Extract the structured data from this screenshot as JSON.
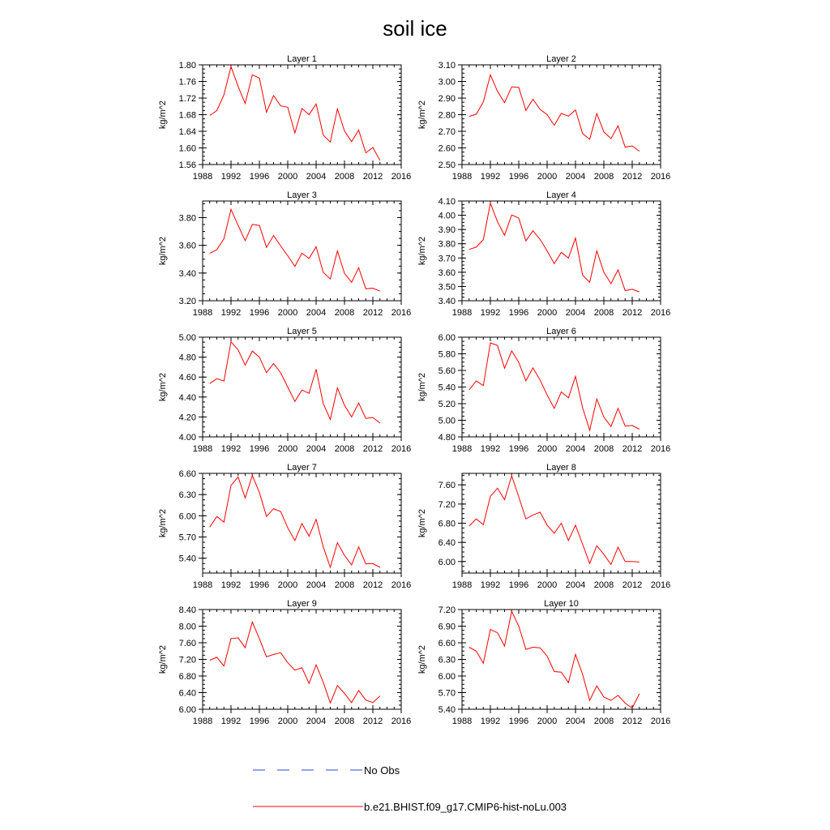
{
  "figure": {
    "title": "soil ice",
    "legend": [
      {
        "label": "No Obs",
        "color": "#3344cc",
        "style": "dashed"
      },
      {
        "label": "b.e21.BHIST.f09_g17.CMIP6-hist-noLu.003",
        "color": "#ff0000",
        "style": "solid"
      }
    ]
  },
  "chart_data": [
    {
      "type": "line",
      "title": "Layer 1",
      "ylabel": "kg/m^2",
      "xlim": [
        1988,
        2016
      ],
      "xticks": [
        1988,
        1992,
        1996,
        2000,
        2004,
        2008,
        2012,
        2016
      ],
      "ylim": [
        1.56,
        1.8
      ],
      "yticks": [
        1.56,
        1.6,
        1.64,
        1.68,
        1.72,
        1.76,
        1.8
      ],
      "ydec": 2,
      "color": "#ff0000",
      "x": [
        1989,
        1990,
        1991,
        1992,
        1993,
        1994,
        1995,
        1996,
        1997,
        1998,
        1999,
        2000,
        2001,
        2002,
        2003,
        2004,
        2005,
        2006,
        2007,
        2008,
        2009,
        2010,
        2011,
        2012,
        2013
      ],
      "values": [
        1.678,
        1.69,
        1.728,
        1.796,
        1.748,
        1.707,
        1.776,
        1.768,
        1.686,
        1.726,
        1.701,
        1.698,
        1.636,
        1.695,
        1.68,
        1.706,
        1.631,
        1.614,
        1.694,
        1.641,
        1.615,
        1.643,
        1.588,
        1.601,
        1.57
      ]
    },
    {
      "type": "line",
      "title": "Layer 2",
      "ylabel": "kg/m^2",
      "xlim": [
        1988,
        2016
      ],
      "xticks": [
        1988,
        1992,
        1996,
        2000,
        2004,
        2008,
        2012,
        2016
      ],
      "ylim": [
        2.5,
        3.1
      ],
      "yticks": [
        2.5,
        2.6,
        2.7,
        2.8,
        2.9,
        3.0,
        3.1
      ],
      "ydec": 2,
      "color": "#ff0000",
      "x": [
        1989,
        1990,
        1991,
        1992,
        1993,
        1994,
        1995,
        1996,
        1997,
        1998,
        1999,
        2000,
        2001,
        2002,
        2003,
        2004,
        2005,
        2006,
        2007,
        2008,
        2009,
        2010,
        2011,
        2012,
        2013
      ],
      "values": [
        2.79,
        2.803,
        2.876,
        3.04,
        2.94,
        2.872,
        2.968,
        2.964,
        2.826,
        2.893,
        2.832,
        2.8,
        2.736,
        2.808,
        2.791,
        2.829,
        2.686,
        2.652,
        2.807,
        2.696,
        2.656,
        2.733,
        2.605,
        2.612,
        2.58
      ]
    },
    {
      "type": "line",
      "title": "Layer 3",
      "ylabel": "kg/m^2",
      "xlim": [
        1988,
        2016
      ],
      "xticks": [
        1988,
        1992,
        1996,
        2000,
        2004,
        2008,
        2012,
        2016
      ],
      "ylim": [
        3.2,
        3.92
      ],
      "yticks": [
        3.2,
        3.4,
        3.6,
        3.8
      ],
      "ydec": 2,
      "color": "#ff0000",
      "x": [
        1989,
        1990,
        1991,
        1992,
        1993,
        1994,
        1995,
        1996,
        1997,
        1998,
        1999,
        2000,
        2001,
        2002,
        2003,
        2004,
        2005,
        2006,
        2007,
        2008,
        2009,
        2010,
        2011,
        2012,
        2013
      ],
      "values": [
        3.543,
        3.568,
        3.648,
        3.86,
        3.744,
        3.634,
        3.751,
        3.744,
        3.585,
        3.671,
        3.595,
        3.525,
        3.448,
        3.543,
        3.505,
        3.59,
        3.405,
        3.357,
        3.56,
        3.397,
        3.333,
        3.438,
        3.286,
        3.291,
        3.269
      ]
    },
    {
      "type": "line",
      "title": "Layer 4",
      "ylabel": "kg/m^2",
      "xlim": [
        1988,
        2016
      ],
      "xticks": [
        1988,
        1992,
        1996,
        2000,
        2004,
        2008,
        2012,
        2016
      ],
      "ylim": [
        3.4,
        4.1
      ],
      "yticks": [
        3.4,
        3.5,
        3.6,
        3.7,
        3.8,
        3.9,
        4.0,
        4.1
      ],
      "ydec": 2,
      "color": "#ff0000",
      "x": [
        1989,
        1990,
        1991,
        1992,
        1993,
        1994,
        1995,
        1996,
        1997,
        1998,
        1999,
        2000,
        2001,
        2002,
        2003,
        2004,
        2005,
        2006,
        2007,
        2008,
        2009,
        2010,
        2011,
        2012,
        2013
      ],
      "values": [
        3.76,
        3.776,
        3.829,
        4.085,
        3.954,
        3.86,
        4.002,
        3.98,
        3.82,
        3.891,
        3.83,
        3.75,
        3.66,
        3.74,
        3.7,
        3.84,
        3.579,
        3.53,
        3.75,
        3.6,
        3.52,
        3.616,
        3.471,
        3.48,
        3.462
      ]
    },
    {
      "type": "line",
      "title": "Layer 5",
      "ylabel": "kg/m^2",
      "xlim": [
        1988,
        2016
      ],
      "xticks": [
        1988,
        1992,
        1996,
        2000,
        2004,
        2008,
        2012,
        2016
      ],
      "ylim": [
        4.0,
        5.0
      ],
      "yticks": [
        4.0,
        4.2,
        4.4,
        4.6,
        4.8,
        5.0
      ],
      "ydec": 2,
      "color": "#ff0000",
      "x": [
        1989,
        1990,
        1991,
        1992,
        1993,
        1994,
        1995,
        1996,
        1997,
        1998,
        1999,
        2000,
        2001,
        2002,
        2003,
        2004,
        2005,
        2006,
        2007,
        2008,
        2009,
        2010,
        2011,
        2012,
        2013
      ],
      "values": [
        4.535,
        4.584,
        4.56,
        4.954,
        4.872,
        4.72,
        4.861,
        4.8,
        4.643,
        4.736,
        4.642,
        4.5,
        4.355,
        4.47,
        4.437,
        4.678,
        4.335,
        4.175,
        4.491,
        4.317,
        4.2,
        4.34,
        4.185,
        4.194,
        4.14
      ]
    },
    {
      "type": "line",
      "title": "Layer 6",
      "ylabel": "kg/m^2",
      "xlim": [
        1988,
        2016
      ],
      "xticks": [
        1988,
        1992,
        1996,
        2000,
        2004,
        2008,
        2012,
        2016
      ],
      "ylim": [
        4.8,
        6.0
      ],
      "yticks": [
        4.8,
        5.0,
        5.2,
        5.4,
        5.6,
        5.8,
        6.0
      ],
      "ydec": 2,
      "color": "#ff0000",
      "x": [
        1989,
        1990,
        1991,
        1992,
        1993,
        1994,
        1995,
        1996,
        1997,
        1998,
        1999,
        2000,
        2001,
        2002,
        2003,
        2004,
        2005,
        2006,
        2007,
        2008,
        2009,
        2010,
        2011,
        2012,
        2013
      ],
      "values": [
        5.365,
        5.473,
        5.418,
        5.931,
        5.9,
        5.626,
        5.835,
        5.698,
        5.475,
        5.63,
        5.485,
        5.304,
        5.143,
        5.34,
        5.27,
        5.528,
        5.151,
        4.88,
        5.257,
        5.039,
        4.925,
        5.143,
        4.93,
        4.938,
        4.893
      ]
    },
    {
      "type": "line",
      "title": "Layer 7",
      "ylabel": "kg/m^2",
      "xlim": [
        1988,
        2016
      ],
      "xticks": [
        1988,
        1992,
        1996,
        2000,
        2004,
        2008,
        2012,
        2016
      ],
      "ylim": [
        5.19,
        6.6
      ],
      "yticks": [
        5.4,
        5.7,
        6.0,
        6.3,
        6.6
      ],
      "ydec": 2,
      "color": "#ff0000",
      "x": [
        1989,
        1990,
        1991,
        1992,
        1993,
        1994,
        1995,
        1996,
        1997,
        1998,
        1999,
        2000,
        2001,
        2002,
        2003,
        2004,
        2005,
        2006,
        2007,
        2008,
        2009,
        2010,
        2011,
        2012,
        2013
      ],
      "values": [
        5.84,
        5.99,
        5.91,
        6.43,
        6.55,
        6.251,
        6.57,
        6.33,
        5.99,
        6.1,
        6.06,
        5.83,
        5.65,
        5.89,
        5.71,
        5.95,
        5.56,
        5.27,
        5.62,
        5.44,
        5.305,
        5.56,
        5.32,
        5.324,
        5.27
      ]
    },
    {
      "type": "line",
      "title": "Layer 8",
      "ylabel": "kg/m^2",
      "xlim": [
        1988,
        2016
      ],
      "xticks": [
        1988,
        1992,
        1996,
        2000,
        2004,
        2008,
        2012,
        2016
      ],
      "ylim": [
        5.76,
        7.84
      ],
      "yticks": [
        6.0,
        6.4,
        6.8,
        7.2,
        7.6
      ],
      "ydec": 2,
      "color": "#ff0000",
      "x": [
        1989,
        1990,
        1991,
        1992,
        1993,
        1994,
        1995,
        1996,
        1997,
        1998,
        1999,
        2000,
        2001,
        2002,
        2003,
        2004,
        2005,
        2006,
        2007,
        2008,
        2009,
        2010,
        2011,
        2012,
        2013
      ],
      "values": [
        6.74,
        6.89,
        6.77,
        7.36,
        7.53,
        7.29,
        7.79,
        7.35,
        6.89,
        6.97,
        7.03,
        6.76,
        6.59,
        6.8,
        6.44,
        6.76,
        6.36,
        5.96,
        6.33,
        6.15,
        5.94,
        6.3,
        6.0,
        6.0,
        5.99
      ]
    },
    {
      "type": "line",
      "title": "Layer 9",
      "ylabel": "kg/m^2",
      "xlim": [
        1988,
        2016
      ],
      "xticks": [
        1988,
        1992,
        1996,
        2000,
        2004,
        2008,
        2012,
        2016
      ],
      "ylim": [
        6.0,
        8.4
      ],
      "yticks": [
        6.0,
        6.4,
        6.8,
        7.2,
        7.6,
        8.0,
        8.4
      ],
      "ydec": 2,
      "color": "#ff0000",
      "x": [
        1989,
        1990,
        1991,
        1992,
        1993,
        1994,
        1995,
        1996,
        1997,
        1998,
        1999,
        2000,
        2001,
        2002,
        2003,
        2004,
        2005,
        2006,
        2007,
        2008,
        2009,
        2010,
        2011,
        2012,
        2013
      ],
      "values": [
        7.18,
        7.25,
        7.04,
        7.7,
        7.72,
        7.48,
        8.1,
        7.7,
        7.26,
        7.32,
        7.36,
        7.12,
        6.94,
        7.0,
        6.62,
        7.07,
        6.65,
        6.15,
        6.57,
        6.38,
        6.16,
        6.45,
        6.22,
        6.16,
        6.32
      ]
    },
    {
      "type": "line",
      "title": "Layer 10",
      "ylabel": "kg/m^2",
      "xlim": [
        1988,
        2016
      ],
      "xticks": [
        1988,
        1992,
        1996,
        2000,
        2004,
        2008,
        2012,
        2016
      ],
      "ylim": [
        5.4,
        7.2
      ],
      "yticks": [
        5.4,
        5.7,
        6.0,
        6.3,
        6.6,
        6.9,
        7.2
      ],
      "ydec": 2,
      "color": "#ff0000",
      "x": [
        1989,
        1990,
        1991,
        1992,
        1993,
        1994,
        1995,
        1996,
        1997,
        1998,
        1999,
        2000,
        2001,
        2002,
        2003,
        2004,
        2005,
        2006,
        2007,
        2008,
        2009,
        2010,
        2011,
        2012,
        2013
      ],
      "values": [
        6.52,
        6.45,
        6.23,
        6.84,
        6.78,
        6.54,
        7.17,
        6.9,
        6.48,
        6.52,
        6.51,
        6.36,
        6.08,
        6.07,
        5.88,
        6.39,
        6.03,
        5.56,
        5.82,
        5.62,
        5.56,
        5.65,
        5.51,
        5.42,
        5.68
      ]
    }
  ]
}
